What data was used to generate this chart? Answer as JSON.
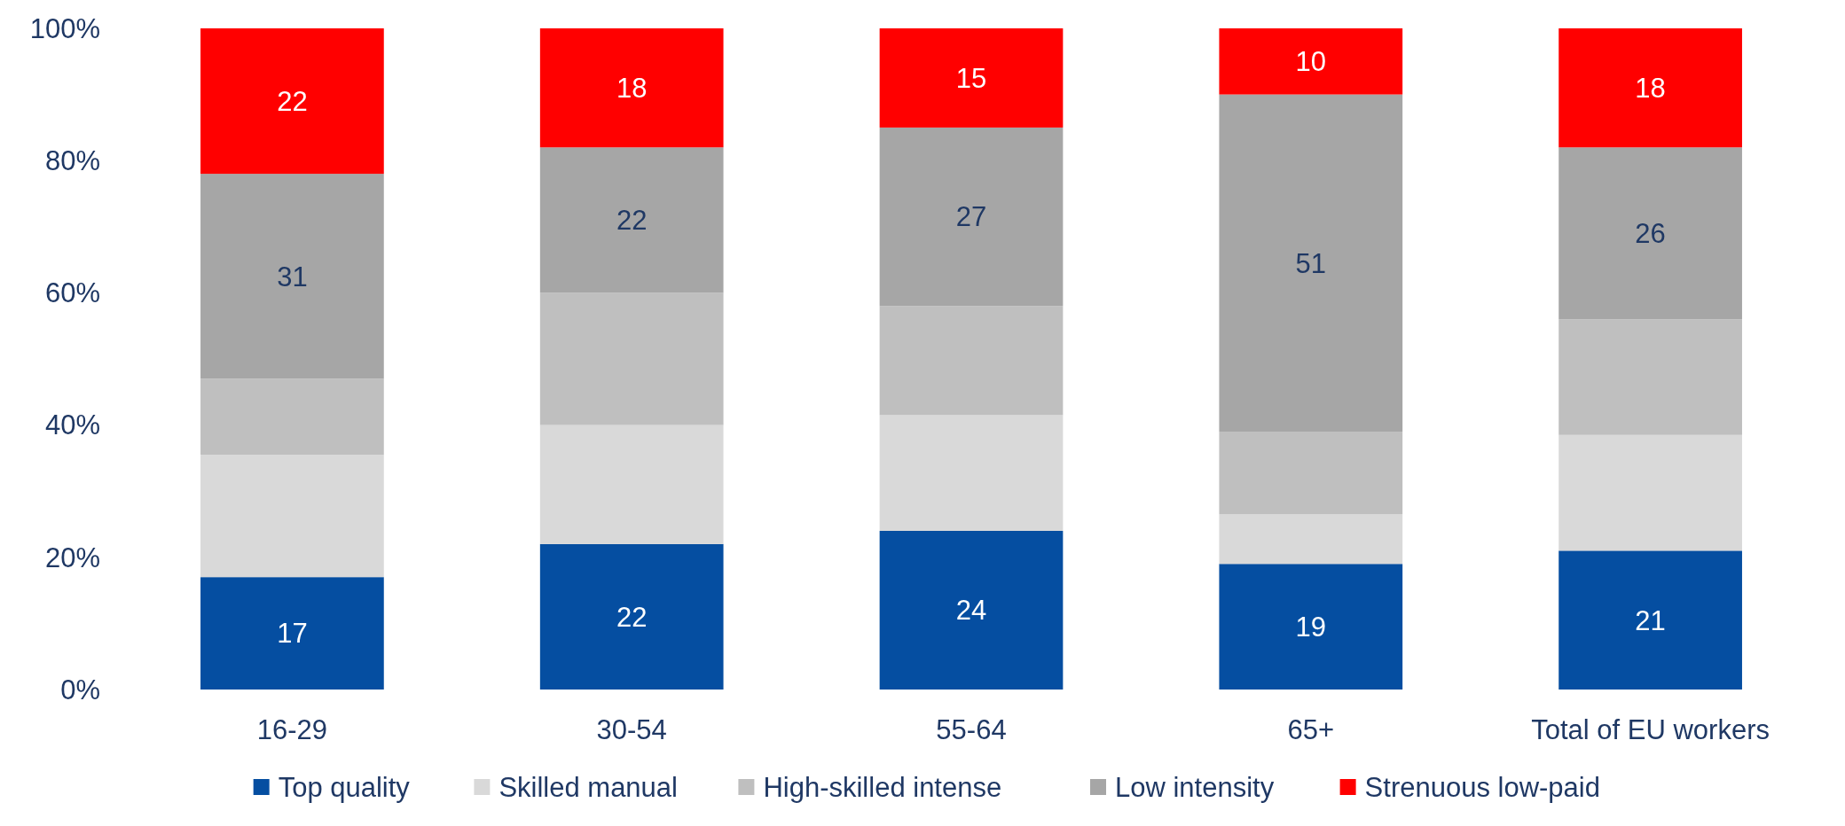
{
  "chart_data": {
    "type": "bar",
    "stacked": true,
    "categories": [
      "16-29",
      "30-54",
      "55-64",
      "65+",
      "Total of EU workers"
    ],
    "series": [
      {
        "name": "Top quality",
        "color": "#054ea1",
        "values": [
          17,
          22,
          24,
          19,
          21
        ],
        "value_labels": [
          "17",
          "22",
          "24",
          "19",
          "21"
        ]
      },
      {
        "name": "Skilled manual",
        "color": "#d9d9d9",
        "values": [
          18.5,
          18,
          17.5,
          7.5,
          17.5
        ]
      },
      {
        "name": "High-skilled intense",
        "color": "#bfbfbf",
        "values": [
          11.5,
          20,
          16.5,
          12.5,
          17.5
        ]
      },
      {
        "name": "Low intensity",
        "color": "#a6a6a6",
        "values": [
          31,
          22,
          27,
          51,
          26
        ],
        "value_labels": [
          "31",
          "22",
          "27",
          "51",
          "26"
        ]
      },
      {
        "name": "Strenuous low-paid",
        "color": "#ff0000",
        "values": [
          22,
          18,
          15,
          10,
          18
        ],
        "value_labels": [
          "22",
          "18",
          "15",
          "10",
          "18"
        ]
      }
    ],
    "ylim": [
      0,
      100
    ],
    "yticks": [
      {
        "value": 0,
        "label": "0%"
      },
      {
        "value": 20,
        "label": "20%"
      },
      {
        "value": 40,
        "label": "40%"
      },
      {
        "value": 60,
        "label": "60%"
      },
      {
        "value": 80,
        "label": "80%"
      },
      {
        "value": 100,
        "label": "100%"
      }
    ],
    "grid": false,
    "legend": "bottom"
  }
}
